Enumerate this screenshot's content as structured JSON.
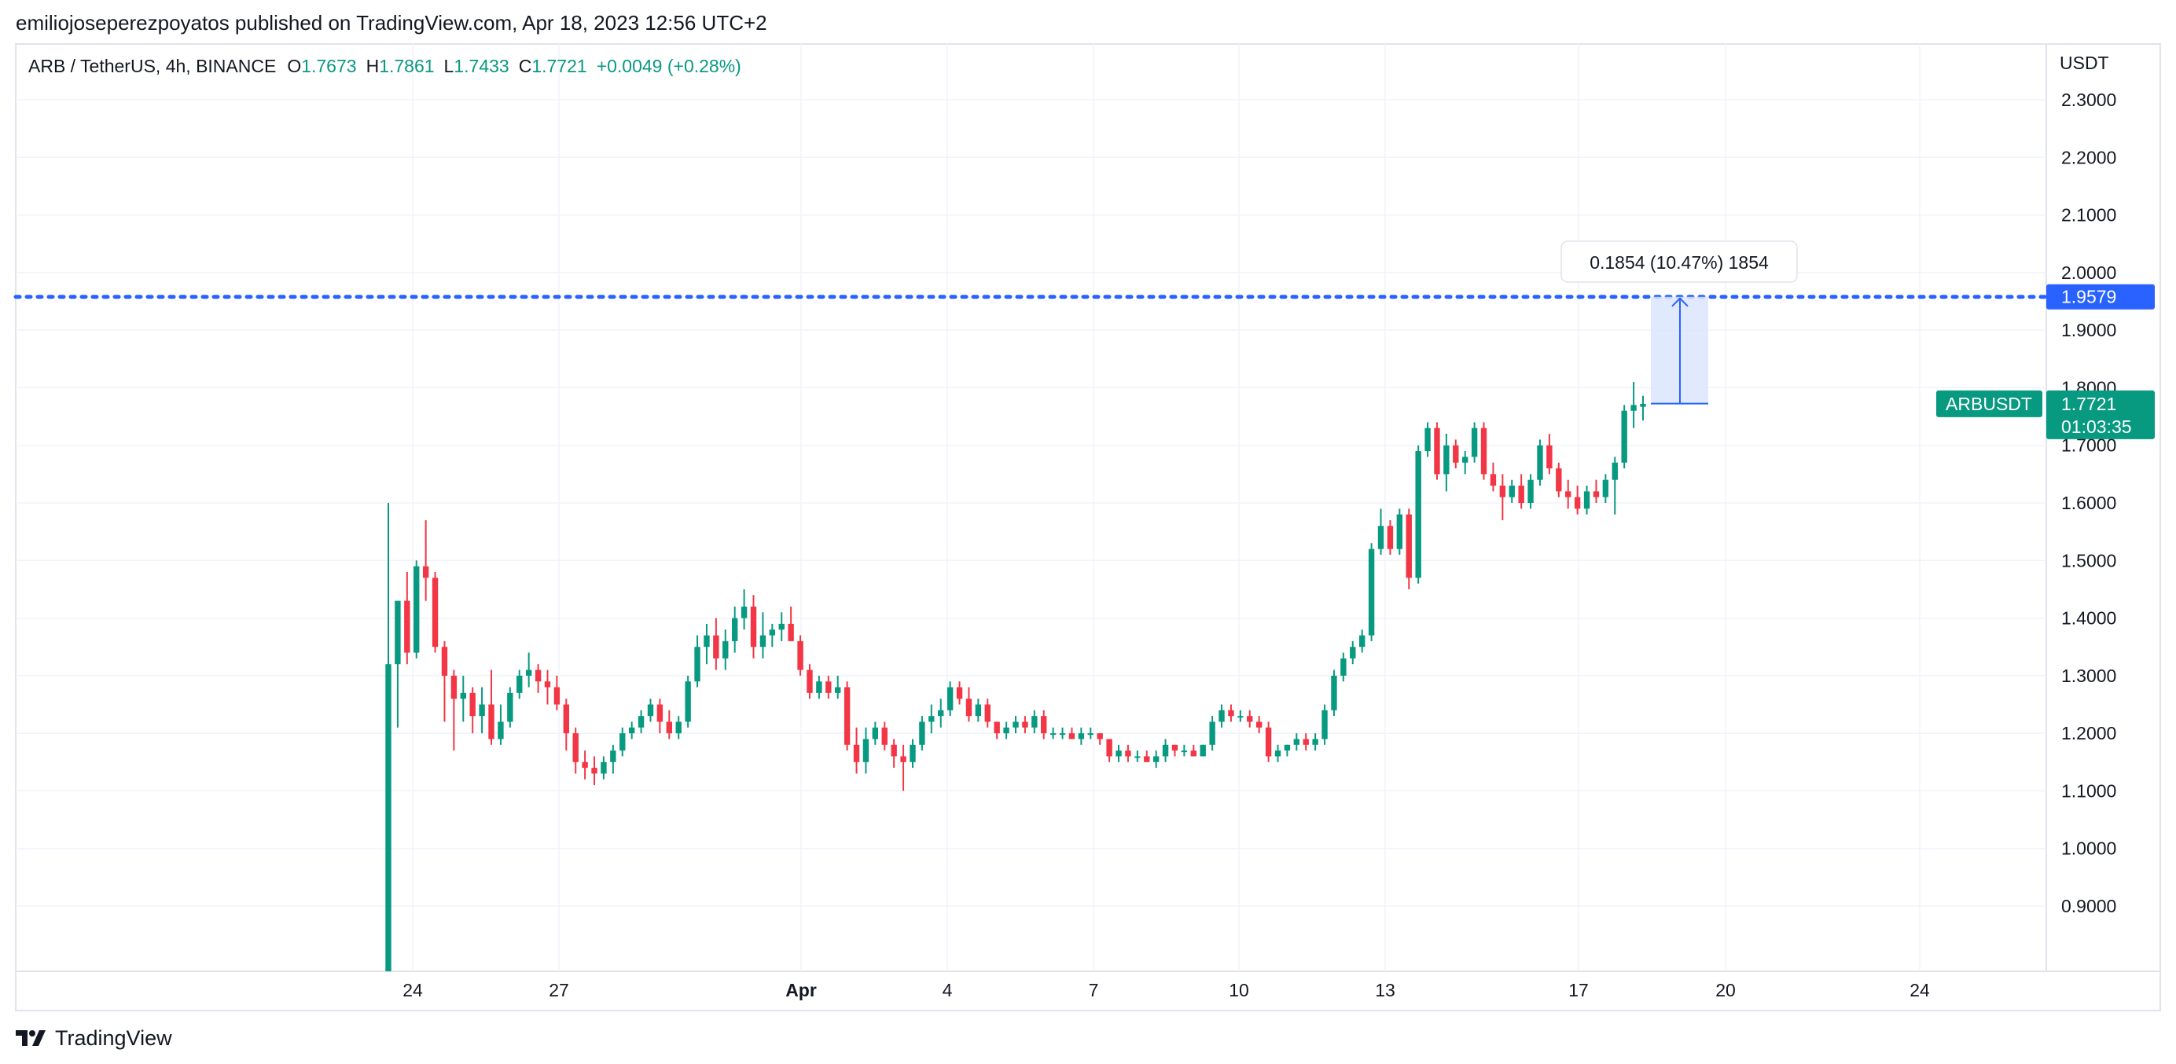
{
  "header": {
    "published_text": "emiliojoseperezpoyatos published on TradingView.com, Apr 18, 2023 12:56 UTC+2"
  },
  "legend": {
    "symbol": "ARB / TetherUS, 4h, BINANCE",
    "o_label": "O",
    "o_value": "1.7673",
    "h_label": "H",
    "h_value": "1.7861",
    "l_label": "L",
    "l_value": "1.7433",
    "c_label": "C",
    "c_value": "1.7721",
    "change": "+0.0049 (+0.28%)"
  },
  "price_axis": {
    "currency": "USDT",
    "ticks": [
      "2.3000",
      "2.2000",
      "2.1000",
      "2.0000",
      "1.9000",
      "1.8000",
      "1.7000",
      "1.6000",
      "1.5000",
      "1.4000",
      "1.3000",
      "1.2000",
      "1.1000",
      "1.0000",
      "0.9000"
    ]
  },
  "time_axis": {
    "ticks": [
      "24",
      "27",
      "Apr",
      "4",
      "7",
      "10",
      "13",
      "17",
      "20",
      "24"
    ]
  },
  "markers": {
    "level_price": "1.9579",
    "current_symbol": "ARBUSDT",
    "current_price": "1.7721",
    "countdown": "01:03:35",
    "measure_label": "0.1854 (10.47%) 1854"
  },
  "colors": {
    "up": "#089981",
    "down": "#f23645",
    "level": "#2962ff",
    "measure_fill": "#dbe5fd",
    "grid": "#f0f3fa",
    "text": "#131722"
  },
  "footer": {
    "brand": "TradingView"
  },
  "chart_data": {
    "type": "candlestick",
    "title": "ARB / TetherUS, 4h, BINANCE",
    "ylabel": "USDT",
    "ylim": [
      0.82,
      2.36
    ],
    "x_ticks": [
      "24",
      "27",
      "Apr",
      "4",
      "7",
      "10",
      "13",
      "17",
      "20",
      "24"
    ],
    "horizontal_line": 1.9579,
    "measure": {
      "from": 1.7725,
      "to": 1.9579,
      "label": "0.1854 (10.47%) 1854"
    },
    "last_ohlc": {
      "open": 1.7673,
      "high": 1.7861,
      "low": 1.7433,
      "close": 1.7721
    },
    "candles": [
      [
        0.65,
        1.6,
        0.62,
        1.32
      ],
      [
        1.32,
        1.42,
        1.21,
        1.43
      ],
      [
        1.43,
        1.48,
        1.32,
        1.34
      ],
      [
        1.34,
        1.5,
        1.33,
        1.49
      ],
      [
        1.49,
        1.57,
        1.43,
        1.47
      ],
      [
        1.47,
        1.48,
        1.34,
        1.35
      ],
      [
        1.35,
        1.36,
        1.22,
        1.3
      ],
      [
        1.3,
        1.31,
        1.17,
        1.26
      ],
      [
        1.26,
        1.3,
        1.22,
        1.27
      ],
      [
        1.27,
        1.28,
        1.2,
        1.23
      ],
      [
        1.23,
        1.28,
        1.2,
        1.25
      ],
      [
        1.25,
        1.31,
        1.18,
        1.19
      ],
      [
        1.19,
        1.25,
        1.18,
        1.22
      ],
      [
        1.22,
        1.28,
        1.21,
        1.27
      ],
      [
        1.27,
        1.31,
        1.26,
        1.3
      ],
      [
        1.3,
        1.34,
        1.28,
        1.31
      ],
      [
        1.31,
        1.32,
        1.27,
        1.29
      ],
      [
        1.29,
        1.31,
        1.25,
        1.28
      ],
      [
        1.28,
        1.3,
        1.24,
        1.25
      ],
      [
        1.25,
        1.26,
        1.17,
        1.2
      ],
      [
        1.2,
        1.21,
        1.13,
        1.15
      ],
      [
        1.15,
        1.17,
        1.12,
        1.14
      ],
      [
        1.14,
        1.16,
        1.11,
        1.13
      ],
      [
        1.13,
        1.16,
        1.12,
        1.15
      ],
      [
        1.15,
        1.18,
        1.13,
        1.17
      ],
      [
        1.17,
        1.21,
        1.16,
        1.2
      ],
      [
        1.2,
        1.22,
        1.19,
        1.21
      ],
      [
        1.21,
        1.24,
        1.2,
        1.23
      ],
      [
        1.23,
        1.26,
        1.22,
        1.25
      ],
      [
        1.25,
        1.26,
        1.2,
        1.22
      ],
      [
        1.22,
        1.24,
        1.19,
        1.2
      ],
      [
        1.2,
        1.23,
        1.19,
        1.22
      ],
      [
        1.22,
        1.3,
        1.21,
        1.29
      ],
      [
        1.29,
        1.37,
        1.28,
        1.35
      ],
      [
        1.35,
        1.39,
        1.32,
        1.37
      ],
      [
        1.37,
        1.4,
        1.31,
        1.33
      ],
      [
        1.33,
        1.38,
        1.31,
        1.36
      ],
      [
        1.36,
        1.42,
        1.34,
        1.4
      ],
      [
        1.4,
        1.45,
        1.38,
        1.42
      ],
      [
        1.42,
        1.44,
        1.33,
        1.35
      ],
      [
        1.35,
        1.41,
        1.33,
        1.37
      ],
      [
        1.37,
        1.39,
        1.35,
        1.38
      ],
      [
        1.38,
        1.41,
        1.36,
        1.39
      ],
      [
        1.39,
        1.42,
        1.36,
        1.36
      ],
      [
        1.36,
        1.37,
        1.3,
        1.31
      ],
      [
        1.31,
        1.32,
        1.26,
        1.27
      ],
      [
        1.27,
        1.3,
        1.26,
        1.29
      ],
      [
        1.29,
        1.3,
        1.26,
        1.27
      ],
      [
        1.27,
        1.3,
        1.26,
        1.28
      ],
      [
        1.28,
        1.29,
        1.17,
        1.18
      ],
      [
        1.18,
        1.21,
        1.13,
        1.15
      ],
      [
        1.15,
        1.21,
        1.13,
        1.19
      ],
      [
        1.19,
        1.22,
        1.18,
        1.21
      ],
      [
        1.21,
        1.22,
        1.17,
        1.18
      ],
      [
        1.18,
        1.19,
        1.14,
        1.16
      ],
      [
        1.16,
        1.18,
        1.1,
        1.15
      ],
      [
        1.15,
        1.19,
        1.14,
        1.18
      ],
      [
        1.18,
        1.23,
        1.17,
        1.22
      ],
      [
        1.22,
        1.25,
        1.2,
        1.23
      ],
      [
        1.23,
        1.26,
        1.21,
        1.24
      ],
      [
        1.24,
        1.29,
        1.23,
        1.28
      ],
      [
        1.28,
        1.29,
        1.25,
        1.26
      ],
      [
        1.26,
        1.28,
        1.22,
        1.23
      ],
      [
        1.23,
        1.26,
        1.22,
        1.25
      ],
      [
        1.25,
        1.26,
        1.21,
        1.22
      ],
      [
        1.22,
        1.22,
        1.19,
        1.2
      ],
      [
        1.2,
        1.22,
        1.19,
        1.21
      ],
      [
        1.21,
        1.23,
        1.2,
        1.22
      ],
      [
        1.22,
        1.23,
        1.2,
        1.21
      ],
      [
        1.21,
        1.24,
        1.2,
        1.23
      ],
      [
        1.23,
        1.24,
        1.19,
        1.2
      ],
      [
        1.2,
        1.21,
        1.19,
        1.2
      ],
      [
        1.2,
        1.21,
        1.19,
        1.2
      ],
      [
        1.2,
        1.21,
        1.19,
        1.19
      ],
      [
        1.19,
        1.21,
        1.18,
        1.2
      ],
      [
        1.2,
        1.21,
        1.19,
        1.2
      ],
      [
        1.2,
        1.2,
        1.18,
        1.19
      ],
      [
        1.19,
        1.19,
        1.15,
        1.16
      ],
      [
        1.16,
        1.18,
        1.15,
        1.17
      ],
      [
        1.17,
        1.18,
        1.15,
        1.16
      ],
      [
        1.16,
        1.17,
        1.15,
        1.16
      ],
      [
        1.16,
        1.17,
        1.15,
        1.15
      ],
      [
        1.15,
        1.17,
        1.14,
        1.16
      ],
      [
        1.16,
        1.19,
        1.15,
        1.18
      ],
      [
        1.18,
        1.18,
        1.16,
        1.17
      ],
      [
        1.17,
        1.18,
        1.16,
        1.17
      ],
      [
        1.17,
        1.18,
        1.16,
        1.16
      ],
      [
        1.16,
        1.18,
        1.16,
        1.18
      ],
      [
        1.18,
        1.23,
        1.17,
        1.22
      ],
      [
        1.22,
        1.25,
        1.21,
        1.24
      ],
      [
        1.24,
        1.25,
        1.22,
        1.23
      ],
      [
        1.23,
        1.24,
        1.22,
        1.23
      ],
      [
        1.23,
        1.24,
        1.21,
        1.22
      ],
      [
        1.22,
        1.23,
        1.2,
        1.21
      ],
      [
        1.21,
        1.22,
        1.15,
        1.16
      ],
      [
        1.16,
        1.18,
        1.15,
        1.17
      ],
      [
        1.17,
        1.18,
        1.16,
        1.18
      ],
      [
        1.18,
        1.2,
        1.17,
        1.19
      ],
      [
        1.19,
        1.2,
        1.17,
        1.18
      ],
      [
        1.18,
        1.2,
        1.17,
        1.19
      ],
      [
        1.19,
        1.25,
        1.18,
        1.24
      ],
      [
        1.24,
        1.31,
        1.23,
        1.3
      ],
      [
        1.3,
        1.34,
        1.29,
        1.33
      ],
      [
        1.33,
        1.36,
        1.32,
        1.35
      ],
      [
        1.35,
        1.38,
        1.34,
        1.37
      ],
      [
        1.37,
        1.53,
        1.36,
        1.52
      ],
      [
        1.52,
        1.59,
        1.51,
        1.56
      ],
      [
        1.56,
        1.57,
        1.51,
        1.52
      ],
      [
        1.52,
        1.59,
        1.51,
        1.58
      ],
      [
        1.58,
        1.59,
        1.45,
        1.47
      ],
      [
        1.47,
        1.7,
        1.46,
        1.69
      ],
      [
        1.69,
        1.74,
        1.68,
        1.73
      ],
      [
        1.73,
        1.74,
        1.64,
        1.65
      ],
      [
        1.65,
        1.72,
        1.62,
        1.7
      ],
      [
        1.7,
        1.71,
        1.66,
        1.67
      ],
      [
        1.67,
        1.69,
        1.65,
        1.68
      ],
      [
        1.68,
        1.74,
        1.67,
        1.73
      ],
      [
        1.73,
        1.74,
        1.64,
        1.65
      ],
      [
        1.65,
        1.67,
        1.62,
        1.63
      ],
      [
        1.63,
        1.65,
        1.57,
        1.61
      ],
      [
        1.61,
        1.64,
        1.6,
        1.63
      ],
      [
        1.63,
        1.65,
        1.59,
        1.6
      ],
      [
        1.6,
        1.65,
        1.59,
        1.64
      ],
      [
        1.64,
        1.71,
        1.63,
        1.7
      ],
      [
        1.7,
        1.72,
        1.65,
        1.66
      ],
      [
        1.66,
        1.67,
        1.61,
        1.62
      ],
      [
        1.62,
        1.64,
        1.59,
        1.61
      ],
      [
        1.61,
        1.63,
        1.58,
        1.59
      ],
      [
        1.59,
        1.63,
        1.58,
        1.62
      ],
      [
        1.62,
        1.64,
        1.6,
        1.61
      ],
      [
        1.61,
        1.65,
        1.6,
        1.64
      ],
      [
        1.64,
        1.68,
        1.58,
        1.67
      ],
      [
        1.67,
        1.77,
        1.66,
        1.76
      ],
      [
        1.76,
        1.81,
        1.73,
        1.77
      ],
      [
        1.767,
        1.786,
        1.743,
        1.772
      ]
    ]
  }
}
